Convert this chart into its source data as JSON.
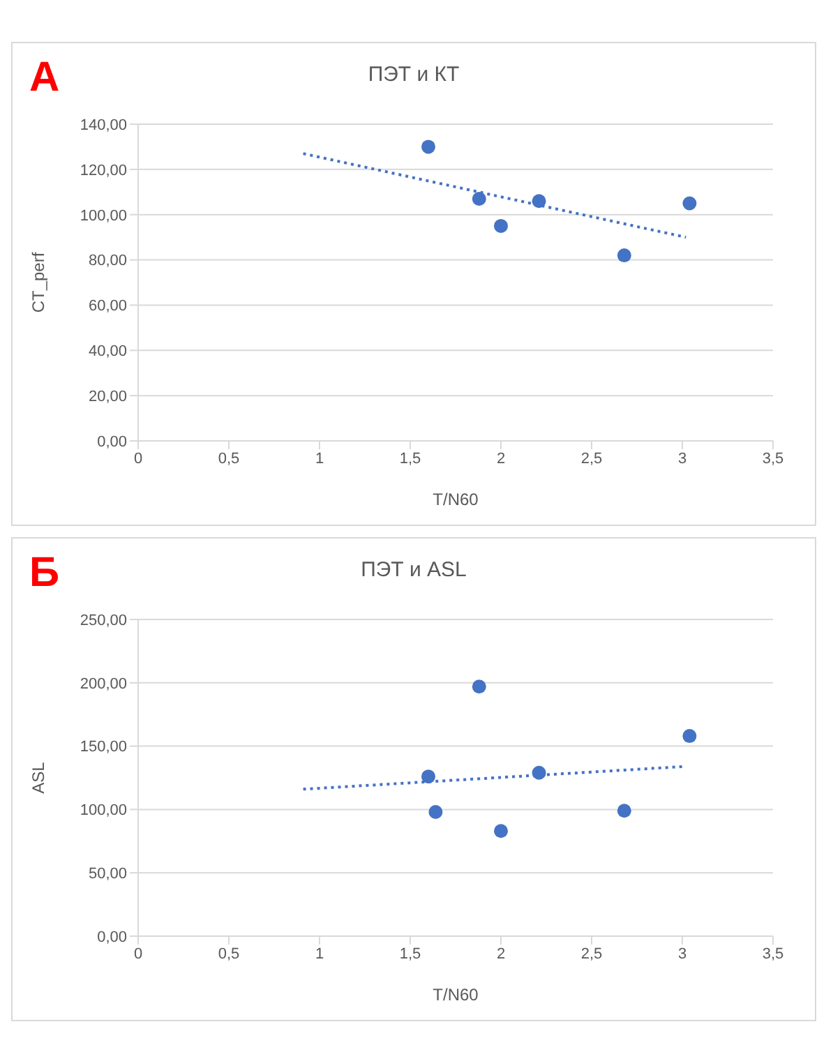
{
  "chart_data": [
    {
      "type": "scatter",
      "title": "ПЭТ и КТ",
      "xlabel": "T/N60",
      "ylabel": "CT_perf",
      "annotations": [
        "А"
      ],
      "grid": "y",
      "marker": "circle",
      "xlim": [
        0,
        3.5
      ],
      "xticks": [
        {
          "value": 0,
          "label": "0"
        },
        {
          "value": 0.5,
          "label": "0,5"
        },
        {
          "value": 1,
          "label": "1"
        },
        {
          "value": 1.5,
          "label": "1,5"
        },
        {
          "value": 2,
          "label": "2"
        },
        {
          "value": 2.5,
          "label": "2,5"
        },
        {
          "value": 3,
          "label": "3"
        },
        {
          "value": 3.5,
          "label": "3,5"
        }
      ],
      "ylim": [
        0,
        140
      ],
      "yticks": [
        {
          "value": 0,
          "label": "0,00"
        },
        {
          "value": 20,
          "label": "20,00"
        },
        {
          "value": 40,
          "label": "40,00"
        },
        {
          "value": 60,
          "label": "60,00"
        },
        {
          "value": 80,
          "label": "80,00"
        },
        {
          "value": 100,
          "label": "100,00"
        },
        {
          "value": 120,
          "label": "120,00"
        },
        {
          "value": 140,
          "label": "140,00"
        }
      ],
      "series": [
        {
          "type": "scatter",
          "color": "#4472c4",
          "x": [
            1.6,
            1.88,
            2.0,
            2.21,
            2.68,
            3.04
          ],
          "values": [
            130,
            107,
            95,
            106,
            82,
            105
          ]
        },
        {
          "type": "line",
          "color": "#4472c4",
          "line_style": "dotted",
          "marker": "none",
          "x": [
            0.91,
            3.02
          ],
          "values": [
            127,
            90
          ]
        }
      ]
    },
    {
      "type": "scatter",
      "title": "ПЭТ и ASL",
      "xlabel": "T/N60",
      "ylabel": "ASL",
      "annotations": [
        "Б"
      ],
      "grid": "y",
      "marker": "circle",
      "xlim": [
        0,
        3.5
      ],
      "xticks": [
        {
          "value": 0,
          "label": "0"
        },
        {
          "value": 0.5,
          "label": "0,5"
        },
        {
          "value": 1,
          "label": "1"
        },
        {
          "value": 1.5,
          "label": "1,5"
        },
        {
          "value": 2,
          "label": "2"
        },
        {
          "value": 2.5,
          "label": "2,5"
        },
        {
          "value": 3,
          "label": "3"
        },
        {
          "value": 3.5,
          "label": "3,5"
        }
      ],
      "ylim": [
        0,
        250
      ],
      "yticks": [
        {
          "value": 0,
          "label": "0,00"
        },
        {
          "value": 50,
          "label": "50,00"
        },
        {
          "value": 100,
          "label": "100,00"
        },
        {
          "value": 150,
          "label": "150,00"
        },
        {
          "value": 200,
          "label": "200,00"
        },
        {
          "value": 250,
          "label": "250,00"
        }
      ],
      "series": [
        {
          "type": "scatter",
          "color": "#4472c4",
          "x": [
            1.6,
            1.64,
            1.88,
            2.0,
            2.21,
            2.68,
            3.04
          ],
          "values": [
            126,
            98,
            197,
            83,
            129,
            99,
            158
          ]
        },
        {
          "type": "line",
          "color": "#4472c4",
          "line_style": "dotted",
          "marker": "none",
          "x": [
            0.91,
            3.02
          ],
          "values": [
            116,
            134
          ]
        }
      ]
    }
  ]
}
